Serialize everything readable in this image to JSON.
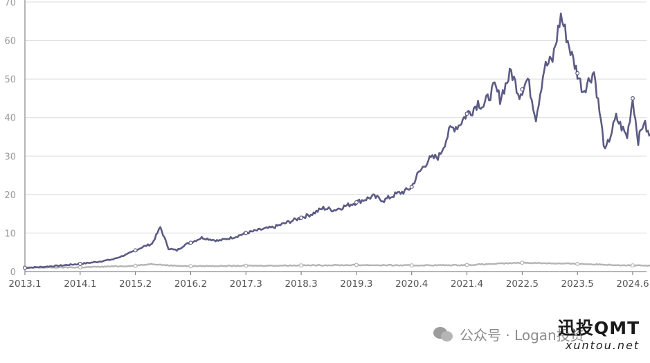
{
  "chart_data": {
    "type": "line",
    "title": "",
    "xlabel": "",
    "ylabel": "",
    "ylim": [
      0,
      70
    ],
    "y_ticks": [
      "0",
      "10",
      "20",
      "30",
      "40",
      "50",
      "60",
      "70"
    ],
    "x_ticks": [
      "2013.1",
      "2014.1",
      "2015.2",
      "2016.2",
      "2017.3",
      "2018.3",
      "2019.3",
      "2020.4",
      "2021.4",
      "2022.5",
      "2023.5",
      "2024.6"
    ],
    "grid": "horizontal",
    "legend": "none",
    "colors": {
      "main": "#5b5b84",
      "baseline": "#b4b4b4",
      "grid": "#dcdcdc",
      "axis": "#6e6e6e"
    },
    "series": [
      {
        "x_index": [
          0,
          0.3,
          0.6,
          1.0,
          1.3,
          1.6,
          1.85,
          2.0,
          2.15,
          2.3,
          2.45,
          2.6,
          2.75,
          2.9,
          3.0,
          3.2,
          3.5,
          3.8,
          4.0,
          4.3,
          4.5,
          4.8,
          5.0,
          5.2,
          5.4,
          5.6,
          5.9,
          6.0,
          6.3,
          6.5,
          6.7,
          6.9,
          7.0,
          7.1,
          7.3,
          7.5,
          7.7,
          7.85,
          8.0,
          8.1,
          8.2,
          8.3,
          8.5,
          8.6,
          8.8,
          8.95,
          9.1,
          9.25,
          9.4,
          9.55,
          9.7,
          9.9,
          10.1,
          10.3,
          10.5,
          10.7,
          10.9,
          11.0,
          11.1,
          11.2,
          11.3,
          11.45,
          11.6
        ],
        "values": [
          1.0,
          1.2,
          1.5,
          2.0,
          2.5,
          3.2,
          4.5,
          5.5,
          6.5,
          7.2,
          11.5,
          6.0,
          5.5,
          7.0,
          7.5,
          8.8,
          8.0,
          9.0,
          10.0,
          11.0,
          11.5,
          13.0,
          14.0,
          15.0,
          16.5,
          16.0,
          17.5,
          18.0,
          19.5,
          18.5,
          20.0,
          21.0,
          22.0,
          25.0,
          29.0,
          30.0,
          37.0,
          38.0,
          41.0,
          42.0,
          44.0,
          43.0,
          48.0,
          45.0,
          52.0,
          46.0,
          50.0,
          40.0,
          53.0,
          55.0,
          66.5,
          56.0,
          47.0,
          52.0,
          31.0,
          40.0,
          35.0,
          45.0,
          34.0,
          39.0,
          35.0,
          40.0,
          34.0
        ]
      },
      {
        "x_index": [
          0,
          1.0,
          2.0,
          2.3,
          2.6,
          3.0,
          4.0,
          5.0,
          6.0,
          7.0,
          8.0,
          9.0,
          10.0,
          11.0,
          11.6
        ],
        "values": [
          1.0,
          1.1,
          1.5,
          2.0,
          1.6,
          1.4,
          1.5,
          1.6,
          1.7,
          1.6,
          1.7,
          2.3,
          2.0,
          1.6,
          1.4
        ]
      }
    ]
  },
  "watermark": {
    "channel": "公众号 · Logan投资",
    "brand": "迅投QMT",
    "site": "xuntou.net"
  }
}
